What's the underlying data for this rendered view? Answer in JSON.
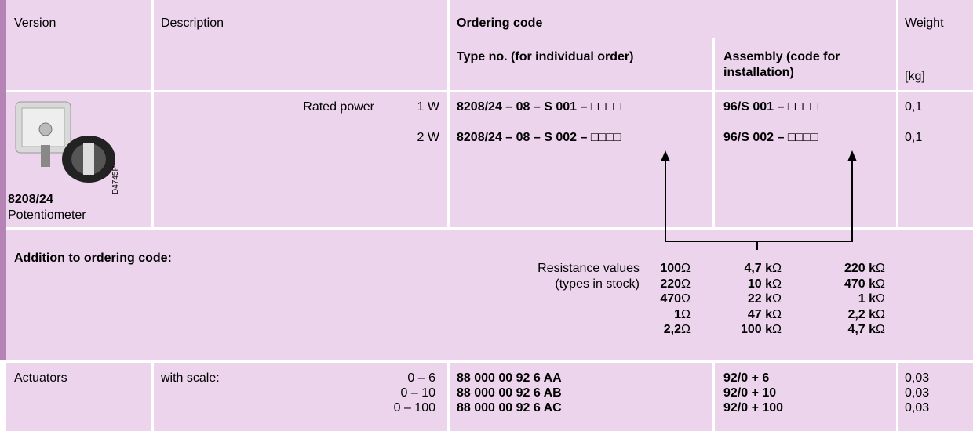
{
  "header": {
    "version": "Version",
    "description": "Description",
    "ordering_code": "Ordering code",
    "type_no": "Type no. (for individual order)",
    "assembly": [
      "Assembly (code for",
      "installation)"
    ],
    "weight": "Weight",
    "weight_unit": "[kg]"
  },
  "product": {
    "image_label": "D4745P",
    "name": "8208/24",
    "description": "Potentiometer",
    "rated_power": "Rated power",
    "rows": [
      {
        "power": "1 W",
        "type_no": "8208/24 – 08 – S 001 – □□□□",
        "assembly": "96/S 001 – □□□□",
        "weight": "0,1"
      },
      {
        "power": "2 W",
        "type_no": "8208/24 – 08 – S 002 – □□□□",
        "assembly": "96/S 002 – □□□□",
        "weight": "0,1"
      }
    ]
  },
  "addition": {
    "title": "Addition to ordering code:",
    "label": [
      "Resistance values",
      "(types in stock)"
    ],
    "columns": [
      [
        {
          "value": "100",
          "unit": "Ω"
        },
        {
          "value": "220",
          "unit": "Ω"
        },
        {
          "value": "470",
          "unit": "Ω"
        },
        {
          "value": "1",
          "unit": "Ω"
        },
        {
          "value": "2,2",
          "unit": "Ω"
        }
      ],
      [
        {
          "value": "4,7 k",
          "unit": "Ω"
        },
        {
          "value": "10 k",
          "unit": "Ω"
        },
        {
          "value": "22 k",
          "unit": "Ω"
        },
        {
          "value": "47 k",
          "unit": "Ω"
        },
        {
          "value": "100 k",
          "unit": "Ω"
        }
      ],
      [
        {
          "value": "220 k",
          "unit": "Ω"
        },
        {
          "value": "470 k",
          "unit": "Ω"
        },
        {
          "value": "1 k",
          "unit": "Ω"
        },
        {
          "value": "2,2 k",
          "unit": "Ω"
        },
        {
          "value": "4,7 k",
          "unit": "Ω"
        }
      ]
    ]
  },
  "actuators": {
    "label": "Actuators",
    "scale": "with scale:",
    "rows": [
      {
        "range": "0 – 6",
        "code": "88 000 00 92 6 AA",
        "assembly": "92/0 + 6",
        "weight": "0,03"
      },
      {
        "range": "0 – 10",
        "code": "88 000 00 92 6 AB",
        "assembly": "92/0 + 10",
        "weight": "0,03"
      },
      {
        "range": "0 – 100",
        "code": "88 000 00 92 6 AC",
        "assembly": "92/0 + 100",
        "weight": "0,03"
      }
    ]
  }
}
